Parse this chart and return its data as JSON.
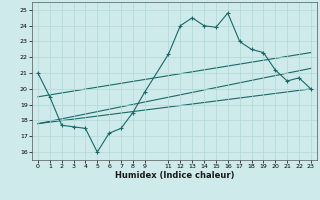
{
  "title": "",
  "xlabel": "Humidex (Indice chaleur)",
  "background_color": "#ceeaea",
  "grid_color": "#b0d8d8",
  "line_color": "#1a6868",
  "xlim": [
    -0.5,
    23.5
  ],
  "ylim": [
    15.5,
    25.5
  ],
  "yticks": [
    16,
    17,
    18,
    19,
    20,
    21,
    22,
    23,
    24,
    25
  ],
  "xtick_positions": [
    0,
    1,
    2,
    3,
    4,
    5,
    6,
    7,
    8,
    9,
    11,
    12,
    13,
    14,
    15,
    16,
    17,
    18,
    19,
    20,
    21,
    22,
    23
  ],
  "xtick_labels": [
    "0",
    "1",
    "2",
    "3",
    "4",
    "5",
    "6",
    "7",
    "8",
    "9",
    "11",
    "12",
    "13",
    "14",
    "15",
    "16",
    "17",
    "18",
    "19",
    "20",
    "21",
    "22",
    "23"
  ],
  "curve1_x": [
    0,
    1,
    2,
    3,
    4,
    5,
    6,
    7,
    8,
    9,
    11,
    12,
    13,
    14,
    15,
    16,
    17,
    18,
    19,
    20,
    21,
    22,
    23
  ],
  "curve1_y": [
    21.0,
    19.5,
    17.7,
    17.6,
    17.5,
    16.0,
    17.2,
    17.5,
    18.5,
    19.8,
    22.2,
    24.0,
    24.5,
    24.0,
    23.9,
    24.8,
    23.0,
    22.5,
    22.3,
    21.2,
    20.5,
    20.7,
    20.0
  ],
  "line2_x": [
    0,
    23
  ],
  "line2_y": [
    19.5,
    22.3
  ],
  "line3_x": [
    0,
    23
  ],
  "line3_y": [
    17.8,
    21.3
  ],
  "line4_x": [
    0,
    23
  ],
  "line4_y": [
    17.8,
    20.0
  ]
}
